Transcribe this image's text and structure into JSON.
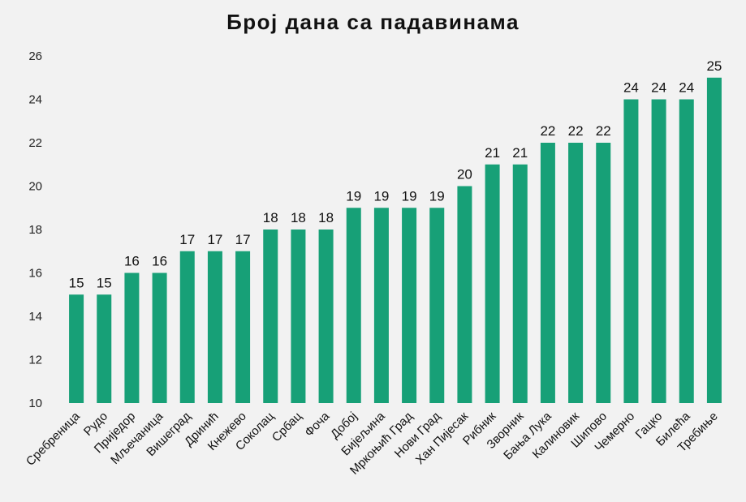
{
  "chart_data": {
    "type": "bar",
    "title": "Број дана са падавинама",
    "xlabel": "",
    "ylabel": "",
    "ylim": [
      10,
      26
    ],
    "yticks": [
      10,
      12,
      14,
      16,
      18,
      20,
      22,
      24,
      26
    ],
    "grid": false,
    "bar_color": "#17a077",
    "categories": [
      "Сребреница",
      "Рудо",
      "Приједор",
      "Мљечаница",
      "Вишеград",
      "Дринић",
      "Кнежево",
      "Соколац",
      "Србац",
      "Фоча",
      "Добој",
      "Бијељина",
      "Мркоњић Град",
      "Нови Град",
      "Хан Пијесак",
      "Рибник",
      "Зворник",
      "Бања Лука",
      "Калиновик",
      "Шипово",
      "Чемерно",
      "Гацко",
      "Билећа",
      "Требиње"
    ],
    "values": [
      15,
      15,
      16,
      16,
      17,
      17,
      17,
      18,
      18,
      18,
      19,
      19,
      19,
      19,
      20,
      21,
      21,
      22,
      22,
      22,
      24,
      24,
      24,
      25
    ]
  }
}
